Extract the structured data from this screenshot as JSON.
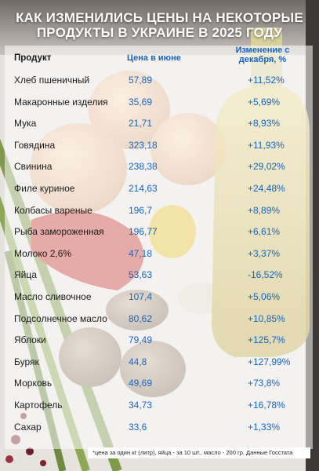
{
  "title": {
    "line1": "КАК ИЗМЕНИЛИСЬ ЦЕНЫ НА НЕКОТОРЫЕ",
    "line2": "ПРОДУКТЫ В УКРАИНЕ В 2025 ГОДУ"
  },
  "headers": {
    "product": "Продукт",
    "price": "Цена в июне",
    "change_line1": "Изменение с",
    "change_line2": "декабря, %"
  },
  "rows": [
    {
      "name": "Хлеб пшеничный",
      "price": "57,89",
      "change": "+11,52%"
    },
    {
      "name": "Макаронные изделия",
      "price": "35,69",
      "change": "+5,69%"
    },
    {
      "name": "Мука",
      "price": "21,71",
      "change": "+8,93%"
    },
    {
      "name": "Говядина",
      "price": "323,18",
      "change": "+11,93%"
    },
    {
      "name": "Свинина",
      "price": "238,38",
      "change": "+29,02%"
    },
    {
      "name": "Филе куриное",
      "price": "214,63",
      "change": "+24,48%"
    },
    {
      "name": "Колбасы вареные",
      "price": "196,7",
      "change": "+8,89%"
    },
    {
      "name": "Рыба замороженная",
      "price": "196,77",
      "change": "+6,61%"
    },
    {
      "name": "Молоко 2,6%",
      "price": "47,18",
      "change": "+3,37%"
    },
    {
      "name": "Яйца",
      "price": "53,63",
      "change": "-16,52%"
    },
    {
      "name": "Масло сливочное",
      "price": "107,4",
      "change": "+5,06%"
    },
    {
      "name": "Подсолнечное масло",
      "price": "80,62",
      "change": "+10,85%"
    },
    {
      "name": "Яблоки",
      "price": "79,49",
      "change": "+125,7%"
    },
    {
      "name": "Буряк",
      "price": "44,8",
      "change": "+127,99%"
    },
    {
      "name": "Морковь",
      "price": "49,69",
      "change": "+73,8%"
    },
    {
      "name": "Картофель",
      "price": "34,73",
      "change": "+16,78%"
    },
    {
      "name": "Сахар",
      "price": "33,6",
      "change": "+1,33%"
    }
  ],
  "footnote": "*цена за один кг (литр), яйца - за 10 шт., масло - 200 гр. Данные Госстата"
}
